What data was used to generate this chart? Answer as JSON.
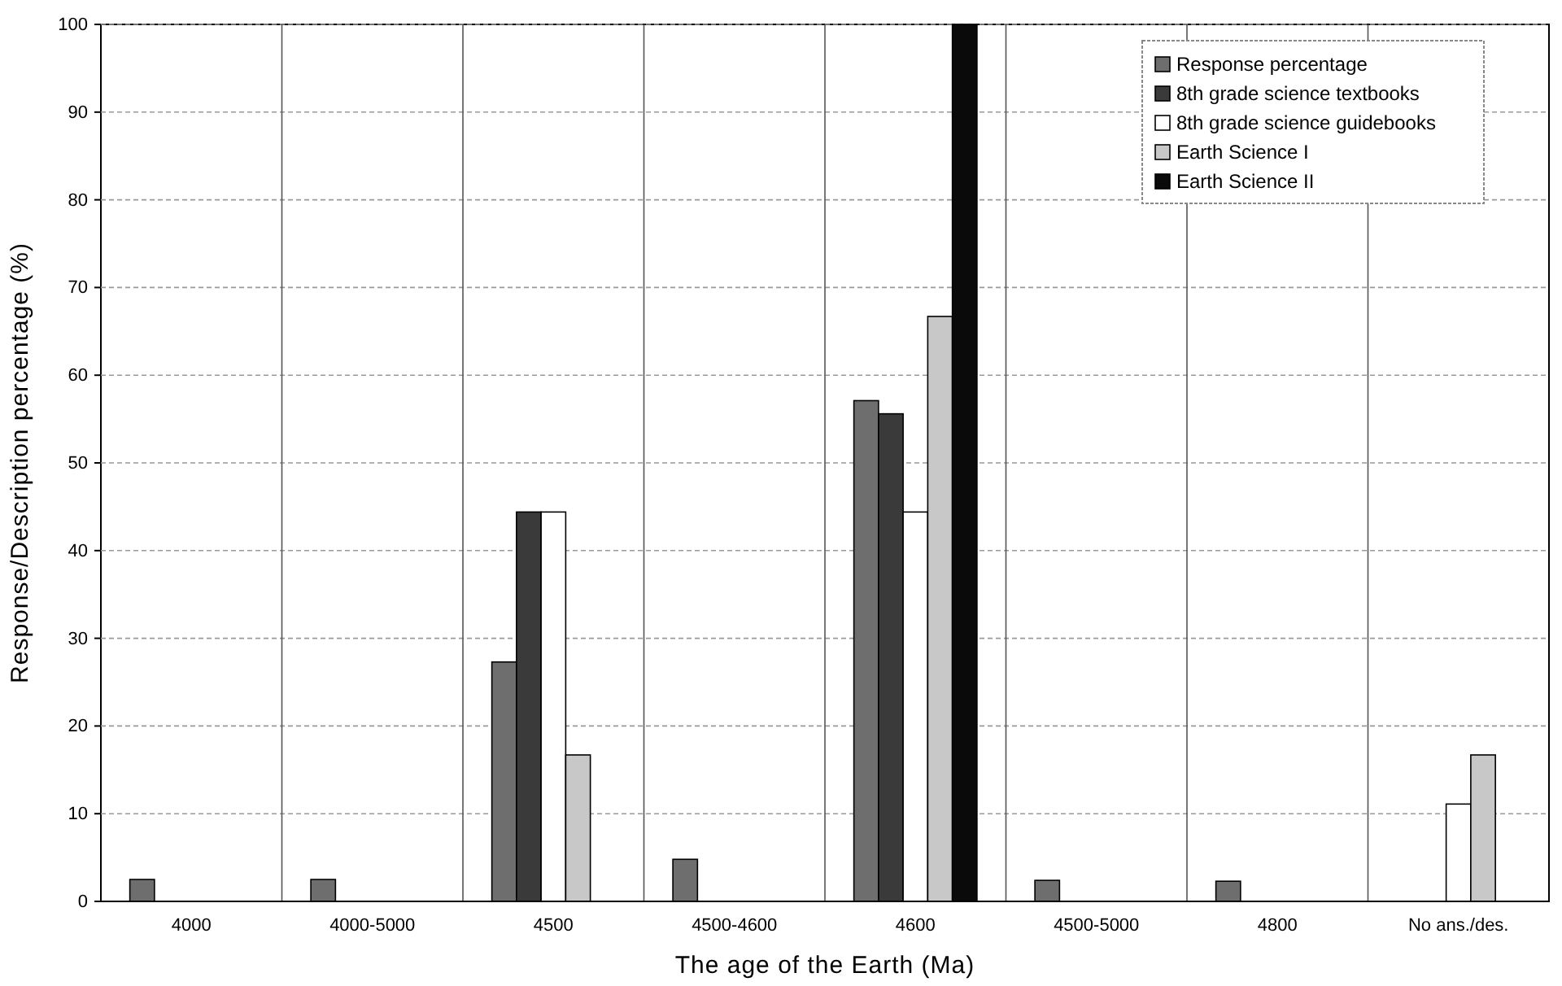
{
  "chart_data": {
    "type": "bar",
    "xlabel": "The age of the Earth (Ma)",
    "ylabel": "Response/Description percentage (%)",
    "categories": [
      "4000",
      "4000-5000",
      "4500",
      "4500-4600",
      "4600",
      "4500-5000",
      "4800",
      "No ans./des."
    ],
    "series": [
      {
        "name": "Response percentage",
        "color": "#6e6e6e",
        "values": [
          2.5,
          2.5,
          27.3,
          4.8,
          57.1,
          2.4,
          2.3,
          0
        ]
      },
      {
        "name": "8th grade science textbooks",
        "color": "#3a3a3a",
        "values": [
          0,
          0,
          44.4,
          0,
          55.6,
          0,
          0,
          0
        ]
      },
      {
        "name": "8th grade science guidebooks",
        "color": "#ffffff",
        "values": [
          0,
          0,
          44.4,
          0,
          44.4,
          0,
          0,
          11.1
        ]
      },
      {
        "name": "Earth Science I",
        "color": "#c8c8c8",
        "values": [
          0,
          0,
          16.7,
          0,
          66.7,
          0,
          0,
          16.7
        ]
      },
      {
        "name": "Earth Science II",
        "color": "#0a0a0a",
        "values": [
          0,
          0,
          0,
          0,
          100,
          0,
          0,
          0
        ]
      }
    ],
    "ylim": [
      0,
      100
    ],
    "yticks": [
      0,
      10,
      20,
      30,
      40,
      50,
      60,
      70,
      80,
      90,
      100
    ],
    "grid": "y",
    "legend": "top right"
  }
}
